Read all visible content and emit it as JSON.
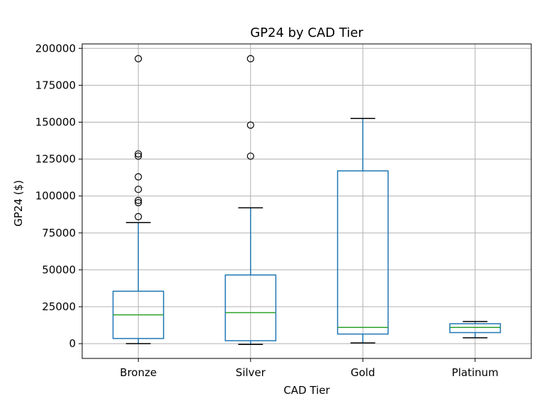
{
  "chart_data": {
    "type": "box",
    "title": "GP24 by CAD Tier",
    "xlabel": "CAD Tier",
    "ylabel": "GP24 ($)",
    "ylim": [
      -10000,
      203000
    ],
    "yticks": [
      0,
      25000,
      50000,
      75000,
      100000,
      125000,
      150000,
      175000,
      200000
    ],
    "ytick_labels": [
      "0",
      "25000",
      "50000",
      "75000",
      "100000",
      "125000",
      "150000",
      "175000",
      "200000"
    ],
    "grid": true,
    "colors": {
      "box": "#1f77b4",
      "median": "#2ca02c",
      "whisker_cap": "#000000",
      "outlier": "#000000",
      "grid": "#b0b0b0"
    },
    "categories": [
      "Bronze",
      "Silver",
      "Gold",
      "Platinum"
    ],
    "boxes": [
      {
        "category": "Bronze",
        "whisker_low": 0,
        "q1": 3500,
        "median": 19500,
        "q3": 35500,
        "whisker_high": 82000,
        "outliers": [
          86000,
          95500,
          97000,
          104500,
          113000,
          127000,
          128500,
          193000
        ]
      },
      {
        "category": "Silver",
        "whisker_low": -500,
        "q1": 2000,
        "median": 21000,
        "q3": 46500,
        "whisker_high": 92000,
        "outliers": [
          127000,
          148000,
          193000
        ]
      },
      {
        "category": "Gold",
        "whisker_low": 500,
        "q1": 6500,
        "median": 11000,
        "q3": 117000,
        "whisker_high": 152500,
        "outliers": []
      },
      {
        "category": "Platinum",
        "whisker_low": 4000,
        "q1": 7500,
        "median": 11000,
        "q3": 13500,
        "whisker_high": 15000,
        "outliers": []
      }
    ]
  }
}
